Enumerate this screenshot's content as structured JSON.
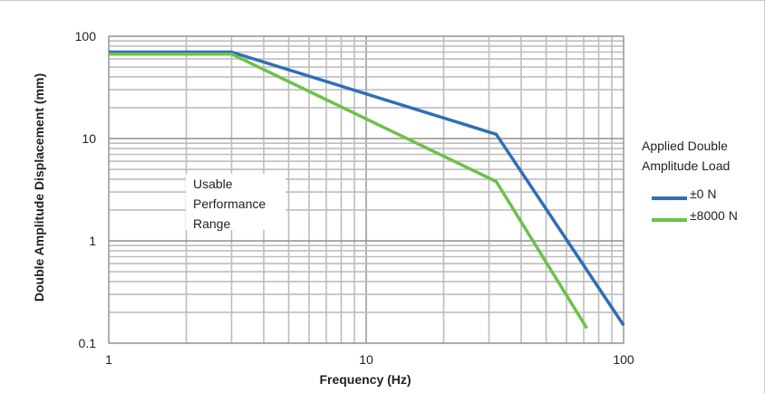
{
  "chart_data": {
    "type": "line",
    "xscale": "log",
    "yscale": "log",
    "xlim": [
      1,
      100
    ],
    "ylim": [
      0.1,
      100
    ],
    "x_ticks": [
      "1",
      "10",
      "100"
    ],
    "y_ticks": [
      "0.1",
      "1",
      "10",
      "100"
    ],
    "xlabel": "Frequency (Hz)",
    "ylabel": "Double Amplitude Displacement (mm)",
    "grid": true,
    "legend": {
      "title_lines": [
        "Applied Double",
        "Amplitude Load"
      ],
      "placement": "right"
    },
    "annotation_lines": [
      "Usable",
      "Performance",
      "Range"
    ],
    "series": [
      {
        "name": "±0 N",
        "color": "#2f6fb5",
        "points": [
          [
            1,
            70
          ],
          [
            3,
            70
          ],
          [
            32,
            11
          ],
          [
            100,
            0.15
          ]
        ]
      },
      {
        "name": "±8000 N",
        "color": "#6cc24a",
        "points": [
          [
            1,
            67
          ],
          [
            3,
            67
          ],
          [
            32,
            3.8
          ],
          [
            72,
            0.14
          ]
        ]
      }
    ],
    "grid_color": "#bdbdbd",
    "major_grid_color": "#8f8f8f"
  }
}
